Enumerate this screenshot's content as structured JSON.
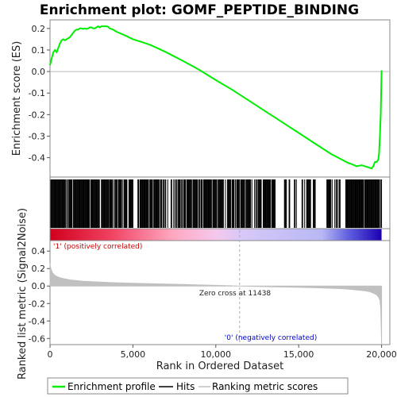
{
  "chart_data": {
    "type": "line",
    "title": "Enrichment plot: GOMF_PEPTIDE_BINDING",
    "es_panel": {
      "ylabel": "Enrichment score (ES)",
      "ylim": [
        -0.49,
        0.24
      ],
      "yticks": [
        0.2,
        0.1,
        0.0,
        -0.1,
        -0.2,
        -0.3,
        -0.4
      ],
      "ytick_labels": [
        "0.2",
        "0.1",
        "0.0",
        "-0.1",
        "-0.2",
        "-0.3",
        "-0.4"
      ],
      "series": [
        {
          "name": "Enrichment profile",
          "color": "#00ee00",
          "x": [
            0,
            100,
            200,
            300,
            400,
            500,
            600,
            700,
            800,
            900,
            1000,
            1100,
            1200,
            1300,
            1400,
            1500,
            1600,
            1700,
            1800,
            1900,
            2000,
            2100,
            2200,
            2300,
            2400,
            2500,
            2600,
            2700,
            2800,
            2900,
            3000,
            3100,
            3200,
            3300,
            3400,
            3500,
            3600,
            3800,
            4000,
            4300,
            4600,
            5000,
            5500,
            6000,
            6500,
            7000,
            8000,
            9000,
            10000,
            11000,
            12000,
            13000,
            14000,
            15000,
            16000,
            17000,
            17500,
            18000,
            18200,
            18500,
            18800,
            19000,
            19200,
            19400,
            19500,
            19600,
            19700,
            19800,
            19850,
            19900,
            19950,
            20000
          ],
          "y": [
            0.03,
            0.06,
            0.09,
            0.1,
            0.09,
            0.11,
            0.13,
            0.145,
            0.15,
            0.145,
            0.15,
            0.155,
            0.16,
            0.17,
            0.18,
            0.19,
            0.195,
            0.195,
            0.2,
            0.2,
            0.198,
            0.2,
            0.198,
            0.2,
            0.205,
            0.205,
            0.2,
            0.2,
            0.205,
            0.21,
            0.205,
            0.21,
            0.21,
            0.21,
            0.21,
            0.208,
            0.2,
            0.195,
            0.185,
            0.175,
            0.165,
            0.15,
            0.138,
            0.125,
            0.108,
            0.09,
            0.05,
            0.008,
            -0.04,
            -0.085,
            -0.135,
            -0.185,
            -0.235,
            -0.285,
            -0.335,
            -0.385,
            -0.405,
            -0.425,
            -0.43,
            -0.44,
            -0.435,
            -0.44,
            -0.445,
            -0.45,
            -0.44,
            -0.42,
            -0.42,
            -0.41,
            -0.38,
            -0.3,
            -0.2,
            0.005
          ]
        }
      ]
    },
    "rank_panel": {
      "ylabel": "Ranked list metric (Signal2Noise)",
      "xlabel": "Rank in Ordered Dataset",
      "xlim": [
        0,
        20500
      ],
      "xticks": [
        0,
        5000,
        10000,
        15000,
        20000
      ],
      "xtick_labels": [
        "0",
        "5,000",
        "10,000",
        "15,000",
        "20,000"
      ],
      "ylim": [
        -0.67,
        0.52
      ],
      "yticks": [
        0.4,
        0.2,
        0.0,
        -0.2,
        -0.4,
        -0.6
      ],
      "ytick_labels": [
        "0.4",
        "0.2",
        "0.0",
        "-0.2",
        "-0.4",
        "-0.6"
      ],
      "series": [
        {
          "name": "Ranking metric scores",
          "color": "#c0c0c0",
          "x": [
            0,
            50,
            150,
            300,
            500,
            800,
            1200,
            2000,
            3000,
            4000,
            5000,
            6000,
            8000,
            10000,
            11438,
            13000,
            15000,
            16000,
            17000,
            17500,
            18000,
            18500,
            19000,
            19300,
            19500,
            19700,
            19800,
            19900,
            19950,
            19980,
            20000
          ],
          "y": [
            0.26,
            0.2,
            0.15,
            0.12,
            0.1,
            0.085,
            0.07,
            0.055,
            0.045,
            0.038,
            0.032,
            0.027,
            0.018,
            0.008,
            0.0,
            -0.007,
            -0.015,
            -0.02,
            -0.026,
            -0.03,
            -0.035,
            -0.045,
            -0.055,
            -0.065,
            -0.08,
            -0.1,
            -0.12,
            -0.16,
            -0.25,
            -0.45,
            -0.66
          ]
        }
      ],
      "zero_cross_label": "Zero cross at 11438",
      "zero_cross_rank": 11438,
      "positive_label": "'1' (positively correlated)",
      "negative_label": "'0' (negatively correlated)"
    },
    "hits": {
      "segments": [
        [
          50,
          2300,
          0.05
        ],
        [
          2300,
          3600,
          0.09
        ],
        [
          3600,
          5000,
          0.18
        ],
        [
          5300,
          7100,
          0.22
        ],
        [
          7300,
          12200,
          0.22
        ],
        [
          12300,
          13600,
          0.35
        ],
        [
          14100,
          14900,
          0.45
        ],
        [
          15200,
          16000,
          0.5
        ],
        [
          16700,
          17500,
          0.5
        ],
        [
          17800,
          19000,
          0.2
        ],
        [
          19000,
          20000,
          0.06
        ]
      ]
    },
    "colors": {
      "es_line": "#00ee00",
      "hits": "#000000",
      "metric_fill": "#c0c0c0",
      "positive_text": "#cc0000",
      "negative_text": "#0000cc"
    },
    "legend": {
      "placement": "bottom",
      "items": [
        {
          "label": "Enrichment profile",
          "kind": "line",
          "color": "#00ee00"
        },
        {
          "label": "Hits",
          "kind": "line",
          "color": "#000000"
        },
        {
          "label": "Ranking metric scores",
          "kind": "line",
          "color": "#c0c0c0"
        }
      ]
    }
  }
}
